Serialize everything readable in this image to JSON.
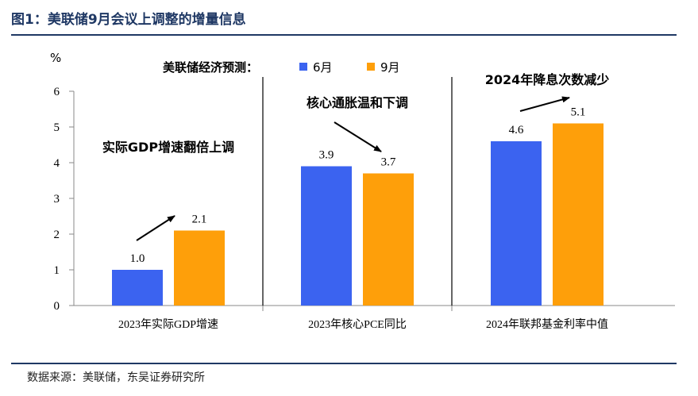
{
  "figure": {
    "title": "图1：美联储9月会议上调整的增量信息",
    "source": "数据来源：美联储，东吴证券研究所"
  },
  "chart_data": {
    "type": "bar",
    "ylabel": "%",
    "ylim": [
      0,
      6
    ],
    "yticks": [
      0,
      1,
      2,
      3,
      4,
      5,
      6
    ],
    "legend_title": "美联储经济预测：",
    "legend_placement": "top",
    "grid": false,
    "categories": [
      "2023年实际GDP增速",
      "2023年核心PCE同比",
      "2024年联邦基金利率中值"
    ],
    "series": [
      {
        "name": "6月",
        "color": "#3b63f0",
        "values": [
          1.0,
          3.9,
          4.6
        ]
      },
      {
        "name": "9月",
        "color": "#fe9f0a",
        "values": [
          2.1,
          3.7,
          5.1
        ]
      }
    ],
    "value_labels": [
      "1.0",
      "3.9",
      "4.6",
      "2.1",
      "3.7",
      "5.1"
    ],
    "annotations": [
      "实际GDP增速翻倍上调",
      "核心通胀温和下调",
      "2024年降息次数减少"
    ]
  }
}
